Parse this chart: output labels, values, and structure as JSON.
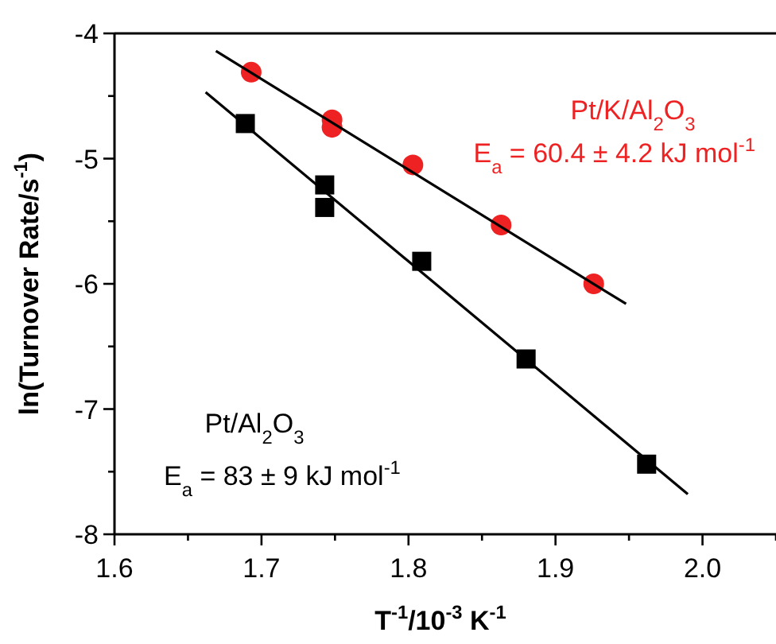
{
  "chart_data": {
    "type": "scatter",
    "xlabel": "T$^{-1}$/10$^{-3}$ K$^{-1}$",
    "ylabel": "ln(Turnover Rate/s$^{-1}$)",
    "xlim": [
      1.6,
      2.05
    ],
    "ylim": [
      -8,
      -4
    ],
    "xticks": [
      1.6,
      {
        "value": 1.65,
        "label": null
      },
      1.7,
      {
        "value": 1.75,
        "label": null
      },
      1.8,
      {
        "value": 1.85,
        "label": null
      },
      1.9,
      {
        "value": 1.95,
        "label": null
      },
      {
        "value": 2.0,
        "label": "2.0"
      },
      {
        "value": 2.05,
        "label": null
      }
    ],
    "yticks": [
      -8,
      {
        "value": -7.5,
        "label": null
      },
      -7,
      {
        "value": -6.5,
        "label": null
      },
      -6,
      {
        "value": -5.5,
        "label": null
      },
      -5,
      {
        "value": -4.5,
        "label": null
      },
      -4
    ],
    "series": [
      {
        "name": "Pt/K/Al$_{2}$O$_{3}$",
        "color": "#ee2222",
        "marker": "circle",
        "x": [
          1.693,
          1.748,
          1.748,
          1.803,
          1.863,
          1.926
        ],
        "values": [
          -4.31,
          -4.69,
          -4.75,
          -5.05,
          -5.53,
          -6.0
        ]
      },
      {
        "name": "Pt/Al$_{2}$O$_{3}$",
        "color": "#000000",
        "marker": "square",
        "x": [
          1.689,
          1.743,
          1.743,
          1.809,
          1.88,
          1.962
        ],
        "values": [
          -4.72,
          -5.21,
          -5.39,
          -5.82,
          -6.6,
          -7.44
        ]
      },
      {
        "type": "line",
        "color": "#000000",
        "marker": "none",
        "x": [
          1.669,
          1.948
        ],
        "values": [
          -4.14,
          -6.16
        ]
      },
      {
        "type": "line",
        "color": "#000000",
        "marker": "none",
        "x": [
          1.662,
          1.99
        ],
        "values": [
          -4.47,
          -7.68
        ]
      }
    ],
    "annotations": [
      "E$_{a}$ = 60.4 ± 4.2 kJ mol$^{-1}$",
      "E$_{a}$ = 83 ± 9 kJ mol$^{-1}$"
    ],
    "grid": false
  }
}
